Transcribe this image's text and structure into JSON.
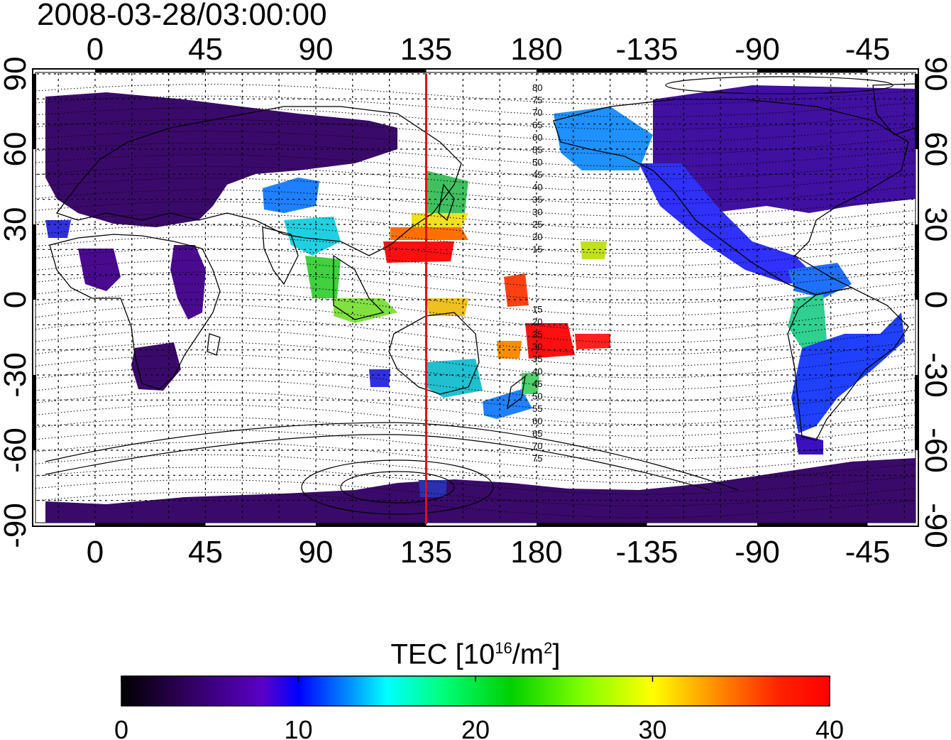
{
  "title": "2008-03-28/03:00:00",
  "map": {
    "lon_ticks_top": [
      "0",
      "45",
      "90",
      "135",
      "180",
      "-135",
      "-90",
      "-45"
    ],
    "lon_ticks_bottom": [
      "0",
      "45",
      "90",
      "135",
      "180",
      "-135",
      "-90",
      "-45"
    ],
    "lat_ticks_left": [
      "90",
      "60",
      "30",
      "0",
      "-30",
      "-60",
      "-90"
    ],
    "lat_ticks_right": [
      "90",
      "60",
      "30",
      "0",
      "-30",
      "-60",
      "-90"
    ],
    "marker_longitude": 135,
    "marker_color": "#e01010",
    "magnetic_lat_labels_north": [
      "80",
      "75",
      "70",
      "65",
      "60",
      "55",
      "50",
      "45",
      "40",
      "35",
      "30",
      "25",
      "20",
      "15"
    ],
    "magnetic_lat_labels_south": [
      "15",
      "20",
      "25",
      "30",
      "35",
      "40",
      "45",
      "50",
      "55",
      "60",
      "65",
      "70",
      "75"
    ]
  },
  "colorbar": {
    "label_prefix": "TEC  [10",
    "label_sup1": "16",
    "label_mid": "/m",
    "label_sup2": "2",
    "label_suffix": "]",
    "ticks": [
      "0",
      "10",
      "20",
      "30",
      "40"
    ],
    "min": 0,
    "max": 40,
    "colors": [
      "#000000",
      "#2a0050",
      "#5a00c8",
      "#0000ff",
      "#00a0ff",
      "#00ffff",
      "#00ff80",
      "#00d000",
      "#80ff00",
      "#ffff00",
      "#ff8000",
      "#ff2000",
      "#ff0000"
    ]
  }
}
